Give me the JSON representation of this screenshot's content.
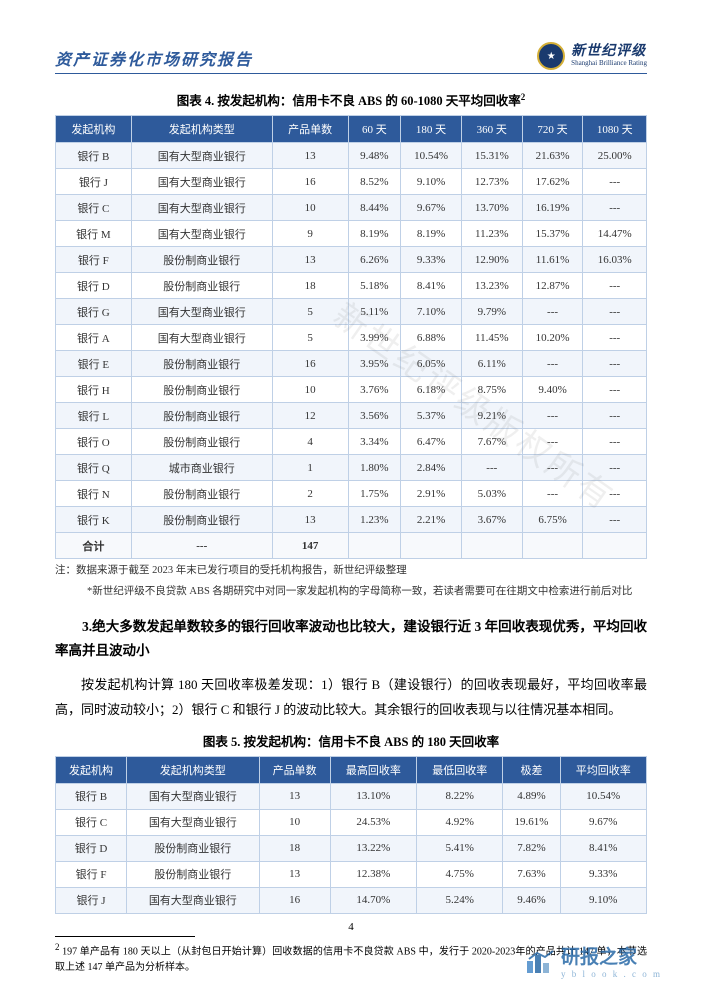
{
  "header": {
    "title": "资产证券化市场研究报告",
    "brand_cn": "新世纪评级",
    "brand_en": "Shanghai Brilliance Rating"
  },
  "table4": {
    "caption": "图表 4.  按发起机构：信用卡不良 ABS 的 60-1080 天平均回收率",
    "caption_sup": "2",
    "columns": [
      "发起机构",
      "发起机构类型",
      "产品单数",
      "60 天",
      "180 天",
      "360 天",
      "720 天",
      "1080 天"
    ],
    "rows": [
      [
        "银行 B",
        "国有大型商业银行",
        "13",
        "9.48%",
        "10.54%",
        "15.31%",
        "21.63%",
        "25.00%"
      ],
      [
        "银行 J",
        "国有大型商业银行",
        "16",
        "8.52%",
        "9.10%",
        "12.73%",
        "17.62%",
        "---"
      ],
      [
        "银行 C",
        "国有大型商业银行",
        "10",
        "8.44%",
        "9.67%",
        "13.70%",
        "16.19%",
        "---"
      ],
      [
        "银行 M",
        "国有大型商业银行",
        "9",
        "8.19%",
        "8.19%",
        "11.23%",
        "15.37%",
        "14.47%"
      ],
      [
        "银行 F",
        "股份制商业银行",
        "13",
        "6.26%",
        "9.33%",
        "12.90%",
        "11.61%",
        "16.03%"
      ],
      [
        "银行 D",
        "股份制商业银行",
        "18",
        "5.18%",
        "8.41%",
        "13.23%",
        "12.87%",
        "---"
      ],
      [
        "银行 G",
        "国有大型商业银行",
        "5",
        "5.11%",
        "7.10%",
        "9.79%",
        "---",
        "---"
      ],
      [
        "银行 A",
        "国有大型商业银行",
        "5",
        "3.99%",
        "6.88%",
        "11.45%",
        "10.20%",
        "---"
      ],
      [
        "银行 E",
        "股份制商业银行",
        "16",
        "3.95%",
        "6.05%",
        "6.11%",
        "---",
        "---"
      ],
      [
        "银行 H",
        "股份制商业银行",
        "10",
        "3.76%",
        "6.18%",
        "8.75%",
        "9.40%",
        "---"
      ],
      [
        "银行 L",
        "股份制商业银行",
        "12",
        "3.56%",
        "5.37%",
        "9.21%",
        "---",
        "---"
      ],
      [
        "银行 O",
        "股份制商业银行",
        "4",
        "3.34%",
        "6.47%",
        "7.67%",
        "---",
        "---"
      ],
      [
        "银行 Q",
        "城市商业银行",
        "1",
        "1.80%",
        "2.84%",
        "---",
        "---",
        "---"
      ],
      [
        "银行 N",
        "股份制商业银行",
        "2",
        "1.75%",
        "2.91%",
        "5.03%",
        "---",
        "---"
      ],
      [
        "银行 K",
        "股份制商业银行",
        "13",
        "1.23%",
        "2.21%",
        "3.67%",
        "6.75%",
        "---"
      ]
    ],
    "total": [
      "合计",
      "---",
      "147",
      "",
      "",
      "",
      "",
      ""
    ],
    "note1": "注：数据来源于截至 2023 年末已发行项目的受托机构报告，新世纪评级整理",
    "note2": "*新世纪评级不良贷款 ABS 各期研究中对同一家发起机构的字母简称一致，若读者需要可在往期文中检索进行前后对比"
  },
  "section3": {
    "heading": "3.绝大多数发起单数较多的银行回收率波动也比较大，建设银行近 3 年回收表现优秀，平均回收率高并且波动小",
    "body": "按发起机构计算 180 天回收率极差发现：1）银行 B（建设银行）的回收表现最好，平均回收率最高，同时波动较小；2）银行 C 和银行 J 的波动比较大。其余银行的回收表现与以往情况基本相同。"
  },
  "table5": {
    "caption": "图表 5.  按发起机构：信用卡不良 ABS 的 180 天回收率",
    "columns": [
      "发起机构",
      "发起机构类型",
      "产品单数",
      "最高回收率",
      "最低回收率",
      "极差",
      "平均回收率"
    ],
    "rows": [
      [
        "银行 B",
        "国有大型商业银行",
        "13",
        "13.10%",
        "8.22%",
        "4.89%",
        "10.54%"
      ],
      [
        "银行 C",
        "国有大型商业银行",
        "10",
        "24.53%",
        "4.92%",
        "19.61%",
        "9.67%"
      ],
      [
        "银行 D",
        "股份制商业银行",
        "18",
        "13.22%",
        "5.41%",
        "7.82%",
        "8.41%"
      ],
      [
        "银行 F",
        "股份制商业银行",
        "13",
        "12.38%",
        "4.75%",
        "7.63%",
        "9.33%"
      ],
      [
        "银行 J",
        "国有大型商业银行",
        "16",
        "14.70%",
        "5.24%",
        "9.46%",
        "9.10%"
      ]
    ]
  },
  "footnote": {
    "sup": "2",
    "text": " 197 单产品有 180 天以上（从封包日开始计算）回收数据的信用卡不良贷款 ABS 中，发行于 2020-2023年的产品共计 147 单，本节选取上述 147 单产品为分析样本。"
  },
  "page_number": "4",
  "watermark": {
    "text": "研报之家",
    "sub": "y b l o o k . c o m",
    "diag": "新世纪评级版权所有"
  },
  "style": {
    "header_color": "#2e5a9b",
    "brand_color": "#1a3a6e",
    "table_header_bg": "#2e5a9b",
    "table_border": "#bfd0e6",
    "alt_row_bg": "#f1f5fb",
    "wm_color": "#2a6aa8"
  }
}
